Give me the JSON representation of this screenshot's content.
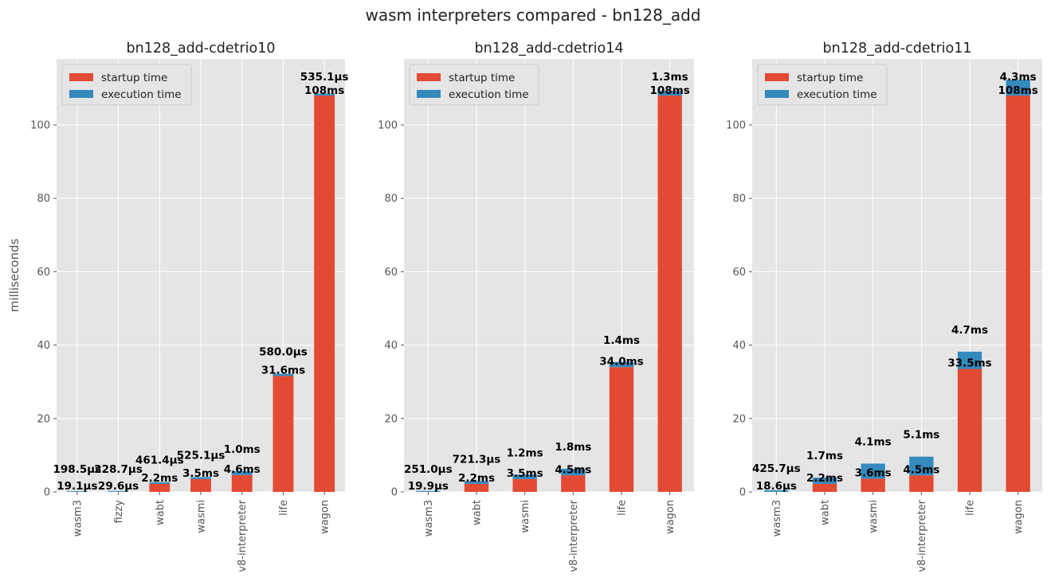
{
  "figure_title": "wasm interpreters compared - bn128_add",
  "colors": {
    "startup": "#E24A33",
    "execution": "#348ABD",
    "panel_bg": "#E5E5E5",
    "grid": "#FFFFFF"
  },
  "chart_data": [
    {
      "type": "bar",
      "stacked": true,
      "title": "bn128_add-cdetrio10",
      "xlabel": "",
      "ylabel": "milliseconds",
      "ylim": [
        0,
        118
      ],
      "yticks": [
        0,
        20,
        40,
        60,
        80,
        100
      ],
      "legend": "top-left",
      "grid": true,
      "categories": [
        "wasm3",
        "fizzy",
        "wabt",
        "wasmi",
        "v8-interpreter",
        "life",
        "wagon"
      ],
      "series": [
        {
          "name": "startup time",
          "values": [
            0.0191,
            0.0296,
            2.2,
            3.5,
            4.6,
            31.6,
            108
          ]
        },
        {
          "name": "execution time",
          "values": [
            0.1985,
            0.2287,
            0.4614,
            0.5251,
            1.0,
            0.58,
            0.5351
          ]
        }
      ],
      "data_labels": {
        "startup": [
          "19.1µs",
          "29.6µs",
          "2.2ms",
          "3.5ms",
          "4.6ms",
          "31.6ms",
          "108ms"
        ],
        "execution": [
          "198.5µs",
          "228.7µs",
          "461.4µs",
          "525.1µs",
          "1.0ms",
          "580.0µs",
          "535.1µs"
        ]
      }
    },
    {
      "type": "bar",
      "stacked": true,
      "title": "bn128_add-cdetrio14",
      "xlabel": "",
      "ylabel": "",
      "ylim": [
        0,
        118
      ],
      "yticks": [
        0,
        20,
        40,
        60,
        80,
        100
      ],
      "legend": "top-left",
      "grid": true,
      "categories": [
        "wasm3",
        "wabt",
        "wasmi",
        "v8-interpreter",
        "life",
        "wagon"
      ],
      "series": [
        {
          "name": "startup time",
          "values": [
            0.0199,
            2.2,
            3.5,
            4.5,
            34.0,
            108
          ]
        },
        {
          "name": "execution time",
          "values": [
            0.251,
            0.7213,
            1.2,
            1.8,
            1.4,
            1.3
          ]
        }
      ],
      "data_labels": {
        "startup": [
          "19.9µs",
          "2.2ms",
          "3.5ms",
          "4.5ms",
          "34.0ms",
          "108ms"
        ],
        "execution": [
          "251.0µs",
          "721.3µs",
          "1.2ms",
          "1.8ms",
          "1.4ms",
          "1.3ms"
        ]
      }
    },
    {
      "type": "bar",
      "stacked": true,
      "title": "bn128_add-cdetrio11",
      "xlabel": "",
      "ylabel": "",
      "ylim": [
        0,
        118
      ],
      "yticks": [
        0,
        20,
        40,
        60,
        80,
        100
      ],
      "legend": "top-left",
      "grid": true,
      "categories": [
        "wasm3",
        "wabt",
        "wasmi",
        "v8-interpreter",
        "life",
        "wagon"
      ],
      "series": [
        {
          "name": "startup time",
          "values": [
            0.0186,
            2.2,
            3.6,
            4.5,
            33.5,
            108
          ]
        },
        {
          "name": "execution time",
          "values": [
            0.4257,
            1.7,
            4.1,
            5.1,
            4.7,
            4.3
          ]
        }
      ],
      "data_labels": {
        "startup": [
          "18.6µs",
          "2.2ms",
          "3.6ms",
          "4.5ms",
          "33.5ms",
          "108ms"
        ],
        "execution": [
          "425.7µs",
          "1.7ms",
          "4.1ms",
          "5.1ms",
          "4.7ms",
          "4.3ms"
        ]
      }
    }
  ]
}
